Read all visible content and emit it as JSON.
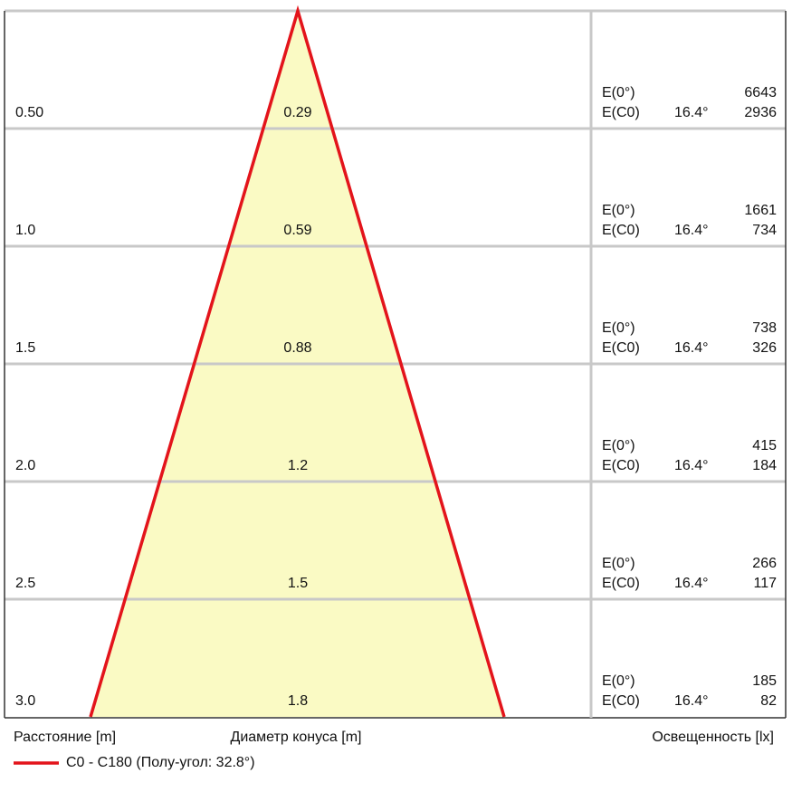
{
  "rows": [
    {
      "distance": "0.50",
      "diameter": "0.29",
      "e0_label": "E(0°)",
      "e0": "6643",
      "ec0_label": "E(C0)",
      "angle": "16.4°",
      "ec0": "2936"
    },
    {
      "distance": "1.0",
      "diameter": "0.59",
      "e0_label": "E(0°)",
      "e0": "1661",
      "ec0_label": "E(C0)",
      "angle": "16.4°",
      "ec0": "734"
    },
    {
      "distance": "1.5",
      "diameter": "0.88",
      "e0_label": "E(0°)",
      "e0": "738",
      "ec0_label": "E(C0)",
      "angle": "16.4°",
      "ec0": "326"
    },
    {
      "distance": "2.0",
      "diameter": "1.2",
      "e0_label": "E(0°)",
      "e0": "415",
      "ec0_label": "E(C0)",
      "angle": "16.4°",
      "ec0": "184"
    },
    {
      "distance": "2.5",
      "diameter": "1.5",
      "e0_label": "E(0°)",
      "e0": "266",
      "ec0_label": "E(C0)",
      "angle": "16.4°",
      "ec0": "117"
    },
    {
      "distance": "3.0",
      "diameter": "1.8",
      "e0_label": "E(0°)",
      "e0": "185",
      "ec0_label": "E(C0)",
      "angle": "16.4°",
      "ec0": "82"
    }
  ],
  "footer": {
    "distance_label": "Расстояние [m]",
    "diameter_label": "Диаметр конуса [m]",
    "illuminance_label": "Освещенность [lx]"
  },
  "legend": {
    "label": "C0 - C180 (Полу-угол: 32.8°)"
  }
}
